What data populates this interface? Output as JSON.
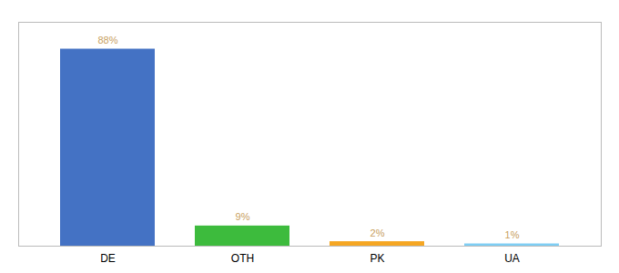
{
  "chart_data": {
    "type": "bar",
    "categories": [
      "DE",
      "OTH",
      "PK",
      "UA"
    ],
    "values": [
      88,
      9,
      2,
      1
    ],
    "value_labels": [
      "88%",
      "9%",
      "2%",
      "1%"
    ],
    "data_labels": true,
    "colors": [
      "#4472c4",
      "#3dbb3d",
      "#f5a623",
      "#7ecef4"
    ],
    "ylim": [
      0,
      100
    ],
    "tick_labels": "x"
  }
}
